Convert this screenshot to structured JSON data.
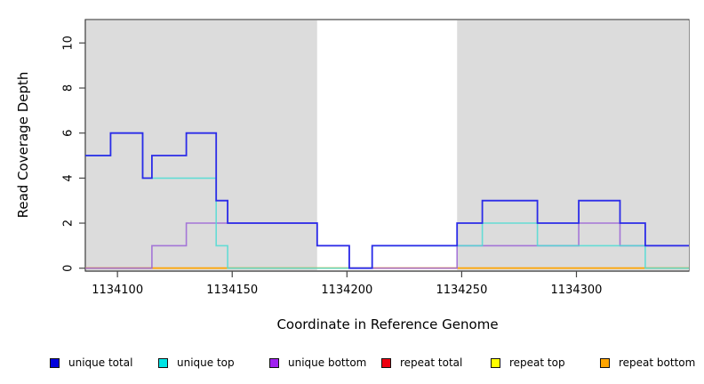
{
  "chart_data": {
    "type": "line",
    "subtype": "step",
    "title": "",
    "xlabel": "Coordinate in Reference Genome",
    "ylabel": "Read Coverage Depth",
    "xlim": [
      1134086,
      1134349
    ],
    "ylim": [
      -0.13,
      11.04
    ],
    "x_ticks": [
      1134100,
      1134150,
      1134200,
      1134250,
      1134300
    ],
    "y_ticks": [
      0,
      2,
      4,
      6,
      8,
      10
    ],
    "grid": false,
    "legend_position": "bottom",
    "shaded_regions": {
      "color": "#DCDCDC",
      "ranges": [
        [
          1134086,
          1134187
        ],
        [
          1134248,
          1134349
        ]
      ]
    },
    "axis_color": "#454545",
    "draw_order": [
      3,
      4,
      5,
      2,
      1,
      0
    ],
    "series": [
      {
        "name": "unique total",
        "line_color": "#2B2BE8",
        "swatch_color": "#0000DD",
        "opacity": 1,
        "width": 1.8,
        "points": [
          [
            1134086,
            5
          ],
          [
            1134097,
            6
          ],
          [
            1134111,
            4
          ],
          [
            1134115,
            5
          ],
          [
            1134130,
            6
          ],
          [
            1134143,
            3
          ],
          [
            1134148,
            2
          ],
          [
            1134187,
            1
          ],
          [
            1134201,
            0
          ],
          [
            1134211,
            1
          ],
          [
            1134248,
            2
          ],
          [
            1134259,
            3
          ],
          [
            1134283,
            2
          ],
          [
            1134301,
            3
          ],
          [
            1134319,
            2
          ],
          [
            1134330,
            1
          ],
          [
            1134349,
            1
          ]
        ]
      },
      {
        "name": "unique top",
        "line_color": "#4FDCD4",
        "swatch_color": "#00E5E5",
        "opacity": 0.85,
        "width": 1.6,
        "points": [
          [
            1134086,
            5
          ],
          [
            1134097,
            6
          ],
          [
            1134111,
            4
          ],
          [
            1134143,
            1
          ],
          [
            1134148,
            0
          ],
          [
            1134211,
            1
          ],
          [
            1134259,
            2
          ],
          [
            1134283,
            1
          ],
          [
            1134330,
            0
          ],
          [
            1134349,
            0
          ]
        ]
      },
      {
        "name": "unique bottom",
        "line_color": "#9A63D6",
        "swatch_color": "#A020F0",
        "opacity": 0.85,
        "width": 1.6,
        "points": [
          [
            1134086,
            0
          ],
          [
            1134115,
            1
          ],
          [
            1134130,
            2
          ],
          [
            1134187,
            1
          ],
          [
            1134201,
            0
          ],
          [
            1134248,
            1
          ],
          [
            1134301,
            2
          ],
          [
            1134319,
            1
          ],
          [
            1134349,
            1
          ]
        ]
      },
      {
        "name": "repeat total",
        "line_color": "#DC143C",
        "swatch_color": "#EE0011",
        "opacity": 1,
        "width": 1.6,
        "points": [
          [
            1134086,
            0
          ],
          [
            1134349,
            0
          ]
        ]
      },
      {
        "name": "repeat top",
        "line_color": "#FFFF00",
        "swatch_color": "#FFFF00",
        "opacity": 1,
        "width": 1.6,
        "points": [
          [
            1134086,
            0
          ],
          [
            1134349,
            0
          ]
        ]
      },
      {
        "name": "repeat bottom",
        "line_color": "#FFA500",
        "swatch_color": "#FFA500",
        "opacity": 1,
        "width": 1.6,
        "points": [
          [
            1134086,
            0
          ],
          [
            1134349,
            0
          ]
        ]
      }
    ]
  }
}
